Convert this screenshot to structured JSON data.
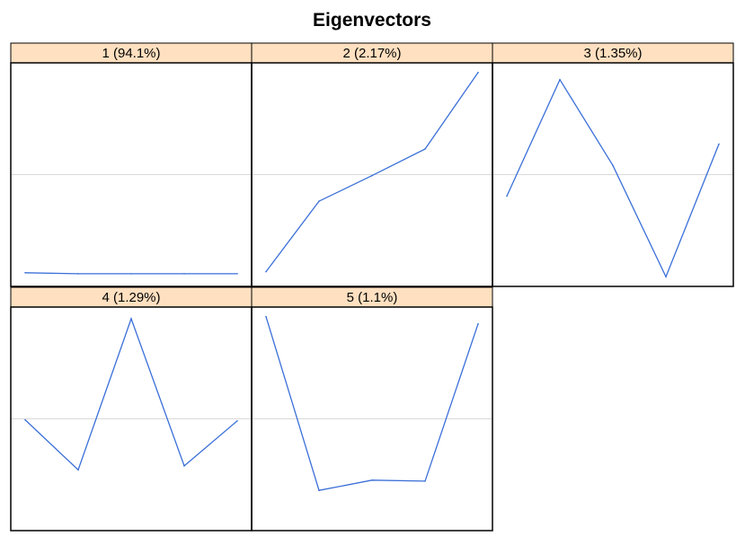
{
  "chart_data": {
    "type": "line",
    "title": "Eigenvectors",
    "layout": {
      "rows": 2,
      "cols": 3
    },
    "series_color": "#3a6fd8",
    "strip_color": "#ffe0c0",
    "zero_line_color": "#d9d9d9",
    "panels": [
      {
        "label": "1 (94.1%)",
        "x": [
          1,
          2,
          3,
          4,
          5
        ],
        "y": [
          -0.96,
          -0.97,
          -0.97,
          -0.97,
          -0.97
        ],
        "ylim": [
          -1.05,
          1.05
        ]
      },
      {
        "label": "2 (2.17%)",
        "x": [
          1,
          2,
          3,
          4,
          5
        ],
        "y": [
          -0.95,
          -0.26,
          -0.01,
          0.25,
          1.0
        ],
        "ylim": [
          -1.05,
          1.05
        ]
      },
      {
        "label": "3 (1.35%)",
        "x": [
          1,
          2,
          3,
          4,
          5
        ],
        "y": [
          -0.21,
          0.93,
          0.09,
          -1.0,
          0.3
        ],
        "ylim": [
          -1.05,
          1.05
        ]
      },
      {
        "label": "4 (1.29%)",
        "x": [
          1,
          2,
          3,
          4,
          5
        ],
        "y": [
          -0.01,
          -0.5,
          0.98,
          -0.46,
          -0.02
        ],
        "ylim": [
          -1.05,
          1.05
        ]
      },
      {
        "label": "5 (1.1%)",
        "x": [
          1,
          2,
          3,
          4,
          5
        ],
        "y": [
          1.0,
          -0.7,
          -0.6,
          -0.61,
          0.93
        ],
        "ylim": [
          -1.05,
          1.05
        ]
      }
    ]
  }
}
